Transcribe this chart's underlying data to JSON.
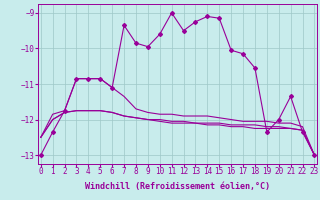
{
  "background_color": "#c8ecec",
  "grid_color": "#9ec8c8",
  "line_color": "#990099",
  "xlim": [
    -0.2,
    23.2
  ],
  "ylim": [
    -13.25,
    -8.75
  ],
  "xticks": [
    0,
    1,
    2,
    3,
    4,
    5,
    6,
    7,
    8,
    9,
    10,
    11,
    12,
    13,
    14,
    15,
    16,
    17,
    18,
    19,
    20,
    21,
    22,
    23
  ],
  "yticks": [
    -13,
    -12,
    -11,
    -10,
    -9
  ],
  "series": [
    [
      -13.0,
      -12.35,
      -11.75,
      -10.85,
      -10.85,
      -10.85,
      -11.1,
      -9.35,
      -9.85,
      -9.95,
      -9.6,
      -9.0,
      -9.5,
      -9.25,
      -9.1,
      -9.15,
      -10.05,
      -10.15,
      -10.55,
      -12.35,
      -12.0,
      -11.35,
      -12.35,
      -13.0
    ],
    [
      -12.5,
      -11.85,
      -11.75,
      -10.85,
      -10.85,
      -10.85,
      -11.1,
      -11.35,
      -11.7,
      -11.8,
      -11.85,
      -11.85,
      -11.9,
      -11.9,
      -11.9,
      -11.95,
      -12.0,
      -12.05,
      -12.05,
      -12.05,
      -12.1,
      -12.1,
      -12.2,
      -13.0
    ],
    [
      -12.5,
      -12.0,
      -11.8,
      -11.75,
      -11.75,
      -11.75,
      -11.8,
      -11.9,
      -11.95,
      -12.0,
      -12.05,
      -12.1,
      -12.1,
      -12.1,
      -12.15,
      -12.15,
      -12.2,
      -12.2,
      -12.25,
      -12.25,
      -12.25,
      -12.25,
      -12.3,
      -13.0
    ],
    [
      -12.5,
      -12.0,
      -11.8,
      -11.75,
      -11.75,
      -11.75,
      -11.8,
      -11.9,
      -11.95,
      -12.0,
      -12.0,
      -12.05,
      -12.05,
      -12.1,
      -12.1,
      -12.1,
      -12.15,
      -12.15,
      -12.15,
      -12.2,
      -12.2,
      -12.25,
      -12.3,
      -13.0
    ]
  ],
  "xlabel": "Windchill (Refroidissement éolien,°C)",
  "marker": "D",
  "marker_size": 2.0,
  "linewidth": 0.8,
  "xlabel_fontsize": 6.0,
  "tick_fontsize": 5.5
}
